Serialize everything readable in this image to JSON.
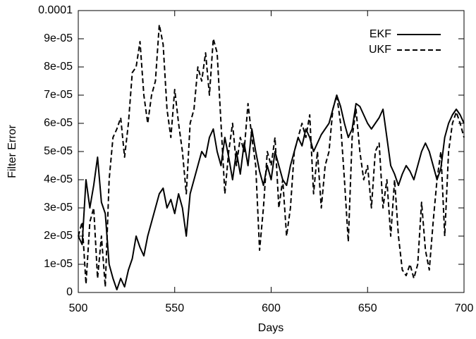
{
  "chart_data": {
    "type": "line",
    "xlabel": "Days",
    "ylabel": "Filter Error",
    "xlim": [
      500,
      700
    ],
    "ylim": [
      0,
      0.0001
    ],
    "xticks": [
      500,
      550,
      600,
      650,
      700
    ],
    "yticks": [
      0,
      {
        "value": 1e-05,
        "label": "1e-05"
      },
      {
        "value": 2e-05,
        "label": "2e-05"
      },
      {
        "value": 3e-05,
        "label": "3e-05"
      },
      {
        "value": 4e-05,
        "label": "4e-05"
      },
      {
        "value": 5e-05,
        "label": "5e-05"
      },
      {
        "value": 6e-05,
        "label": "6e-05"
      },
      {
        "value": 7e-05,
        "label": "7e-05"
      },
      {
        "value": 8e-05,
        "label": "8e-05"
      },
      {
        "value": 9e-05,
        "label": "9e-05"
      },
      0.0001
    ],
    "legend": "top-right",
    "x": [
      500,
      502,
      504,
      506,
      508,
      510,
      512,
      514,
      516,
      518,
      520,
      522,
      524,
      526,
      528,
      530,
      532,
      534,
      536,
      538,
      540,
      542,
      544,
      546,
      548,
      550,
      552,
      554,
      556,
      558,
      560,
      562,
      564,
      566,
      568,
      570,
      572,
      574,
      576,
      578,
      580,
      582,
      584,
      586,
      588,
      590,
      592,
      594,
      596,
      598,
      600,
      602,
      604,
      606,
      608,
      610,
      612,
      614,
      616,
      618,
      620,
      622,
      624,
      626,
      628,
      630,
      632,
      634,
      636,
      638,
      640,
      642,
      644,
      646,
      648,
      650,
      652,
      654,
      656,
      658,
      660,
      662,
      664,
      666,
      668,
      670,
      672,
      674,
      676,
      678,
      680,
      682,
      684,
      686,
      688,
      690,
      692,
      694,
      696,
      698,
      700
    ],
    "series": [
      {
        "name": "EKF",
        "color": "#000000",
        "dash": "solid",
        "values": [
          2e-05,
          1.7e-05,
          4e-05,
          3e-05,
          3.8e-05,
          4.8e-05,
          3.2e-05,
          2.8e-05,
          1e-05,
          5e-06,
          1e-06,
          5e-06,
          2e-06,
          8e-06,
          1.2e-05,
          2e-05,
          1.6e-05,
          1.3e-05,
          2e-05,
          2.5e-05,
          3e-05,
          3.5e-05,
          3.7e-05,
          3e-05,
          3.3e-05,
          2.8e-05,
          3.5e-05,
          3e-05,
          2e-05,
          3.5e-05,
          4e-05,
          4.5e-05,
          5e-05,
          4.8e-05,
          5.5e-05,
          5.8e-05,
          5e-05,
          4.5e-05,
          5.5e-05,
          4.8e-05,
          4e-05,
          5e-05,
          4.2e-05,
          5.3e-05,
          4.5e-05,
          5.8e-05,
          5e-05,
          4.3e-05,
          3.8e-05,
          4.5e-05,
          4e-05,
          5e-05,
          4.5e-05,
          4e-05,
          3.8e-05,
          4.5e-05,
          5e-05,
          5.5e-05,
          5.2e-05,
          5.8e-05,
          5.5e-05,
          5e-05,
          5.3e-05,
          5.6e-05,
          5.8e-05,
          6e-05,
          6.5e-05,
          7e-05,
          6.6e-05,
          6e-05,
          5.5e-05,
          5.8e-05,
          6.7e-05,
          6.6e-05,
          6.3e-05,
          6e-05,
          5.8e-05,
          6e-05,
          6.2e-05,
          6.5e-05,
          5.5e-05,
          4.5e-05,
          4.2e-05,
          3.8e-05,
          4.2e-05,
          4.5e-05,
          4.3e-05,
          4e-05,
          4.5e-05,
          5e-05,
          5.3e-05,
          5e-05,
          4.5e-05,
          4e-05,
          4.4e-05,
          5.5e-05,
          6e-05,
          6.3e-05,
          6.5e-05,
          6.3e-05,
          6e-05
        ]
      },
      {
        "name": "UKF",
        "color": "#000000",
        "dash": "dashed",
        "values": [
          2e-05,
          2.5e-05,
          3e-06,
          2.5e-05,
          3e-05,
          5e-06,
          2e-05,
          2e-06,
          4e-05,
          5.5e-05,
          5.8e-05,
          6.2e-05,
          4.8e-05,
          6e-05,
          7.8e-05,
          8e-05,
          8.9e-05,
          7e-05,
          6e-05,
          7e-05,
          7.5e-05,
          9.5e-05,
          8.8e-05,
          6.5e-05,
          5.5e-05,
          7.2e-05,
          6e-05,
          5e-05,
          3.5e-05,
          6e-05,
          6.5e-05,
          8e-05,
          7.5e-05,
          8.5e-05,
          7e-05,
          9e-05,
          8.5e-05,
          6e-05,
          3.5e-05,
          5e-05,
          6e-05,
          4.5e-05,
          5.5e-05,
          5e-05,
          6.7e-05,
          5.5e-05,
          4.5e-05,
          1.5e-05,
          3e-05,
          5e-05,
          4.5e-05,
          5.5e-05,
          3e-05,
          4e-05,
          2e-05,
          3e-05,
          5e-05,
          5.5e-05,
          6e-05,
          5.5e-05,
          6.3e-05,
          3.5e-05,
          5e-05,
          3e-05,
          4.5e-05,
          5e-05,
          6.5e-05,
          7e-05,
          6e-05,
          4e-05,
          1.8e-05,
          5.5e-05,
          6.5e-05,
          5e-05,
          4e-05,
          4.5e-05,
          3e-05,
          5e-05,
          5.3e-05,
          3e-05,
          4e-05,
          2e-05,
          4e-05,
          2e-05,
          8e-06,
          6e-06,
          1e-05,
          5e-06,
          1e-05,
          3.2e-05,
          1.5e-05,
          8e-06,
          2.5e-05,
          4e-05,
          5e-05,
          2e-05,
          5e-05,
          6e-05,
          6.4e-05,
          6e-05,
          5.5e-05
        ]
      }
    ]
  }
}
